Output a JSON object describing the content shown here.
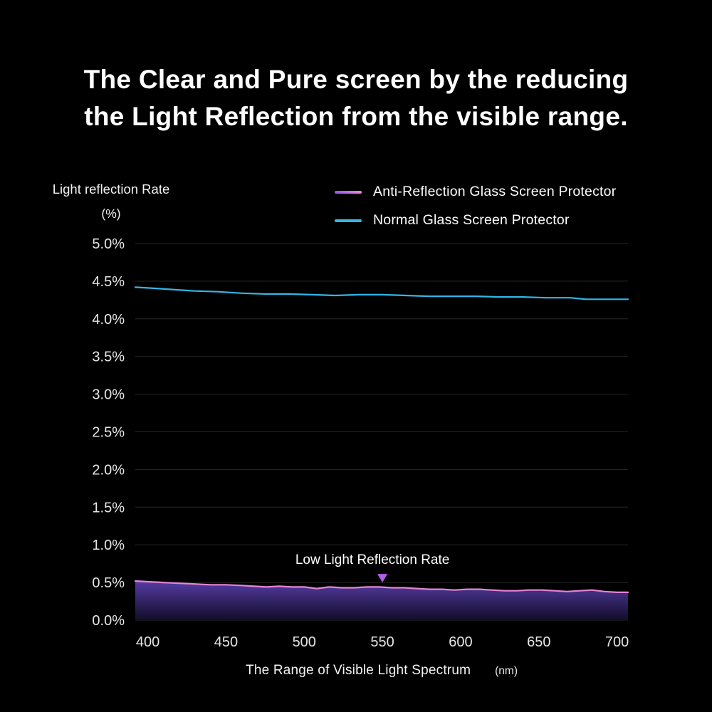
{
  "page": {
    "title_line1": "The Clear and Pure screen by the reducing",
    "title_line2": "the Light Reflection from the visible range."
  },
  "chart_data": {
    "type": "line",
    "title": "",
    "ylabel": "Light reflection Rate",
    "ylabel_unit": "(%)",
    "xlabel": "The Range of Visible Light Spectrum",
    "xlabel_unit": "(nm)",
    "xlim": [
      392,
      707
    ],
    "ylim": [
      0,
      5
    ],
    "grid": true,
    "grid_color": "#262626",
    "tick_color": "#e6e6e6",
    "legend_position": "top-right",
    "y_ticks": [
      "5.0%",
      "4.5%",
      "4.0%",
      "3.5%",
      "3.0%",
      "2.5%",
      "2.0%",
      "1.5%",
      "1.0%",
      "0.5%",
      "0.0%"
    ],
    "x_ticks": [
      400,
      450,
      500,
      550,
      600,
      650,
      700
    ],
    "series": [
      {
        "name": "Anti-Reflection Glass Screen Protector",
        "line_color": "#e584d6",
        "swatch_colors": [
          "#8a5cf6",
          "#f080d8"
        ],
        "area": true,
        "area_top_color": "#5a3fae",
        "area_bottom_color": "#140f2e",
        "points": [
          [
            392,
            0.52
          ],
          [
            400,
            0.51
          ],
          [
            410,
            0.5
          ],
          [
            420,
            0.49
          ],
          [
            430,
            0.48
          ],
          [
            440,
            0.47
          ],
          [
            450,
            0.47
          ],
          [
            460,
            0.46
          ],
          [
            468,
            0.45
          ],
          [
            476,
            0.44
          ],
          [
            484,
            0.45
          ],
          [
            492,
            0.44
          ],
          [
            500,
            0.44
          ],
          [
            508,
            0.42
          ],
          [
            516,
            0.44
          ],
          [
            524,
            0.43
          ],
          [
            532,
            0.43
          ],
          [
            540,
            0.44
          ],
          [
            548,
            0.44
          ],
          [
            556,
            0.43
          ],
          [
            564,
            0.43
          ],
          [
            572,
            0.42
          ],
          [
            580,
            0.41
          ],
          [
            588,
            0.41
          ],
          [
            596,
            0.4
          ],
          [
            604,
            0.41
          ],
          [
            612,
            0.41
          ],
          [
            620,
            0.4
          ],
          [
            628,
            0.39
          ],
          [
            636,
            0.39
          ],
          [
            644,
            0.4
          ],
          [
            652,
            0.4
          ],
          [
            660,
            0.39
          ],
          [
            668,
            0.38
          ],
          [
            676,
            0.39
          ],
          [
            684,
            0.4
          ],
          [
            692,
            0.38
          ],
          [
            700,
            0.37
          ],
          [
            707,
            0.37
          ]
        ]
      },
      {
        "name": "Normal Glass Screen Protector",
        "line_color": "#31b6e8",
        "swatch_colors": [
          "#31b6e8",
          "#31b6e8"
        ],
        "area": false,
        "points": [
          [
            392,
            4.42
          ],
          [
            400,
            4.41
          ],
          [
            415,
            4.39
          ],
          [
            430,
            4.37
          ],
          [
            445,
            4.36
          ],
          [
            460,
            4.34
          ],
          [
            475,
            4.33
          ],
          [
            490,
            4.33
          ],
          [
            505,
            4.32
          ],
          [
            520,
            4.31
          ],
          [
            535,
            4.32
          ],
          [
            550,
            4.32
          ],
          [
            565,
            4.31
          ],
          [
            580,
            4.3
          ],
          [
            595,
            4.3
          ],
          [
            610,
            4.3
          ],
          [
            625,
            4.29
          ],
          [
            640,
            4.29
          ],
          [
            655,
            4.28
          ],
          [
            670,
            4.28
          ],
          [
            680,
            4.26
          ],
          [
            690,
            4.26
          ],
          [
            700,
            4.26
          ],
          [
            707,
            4.26
          ]
        ]
      }
    ],
    "annotation": {
      "text": "Low Light Reflection Rate",
      "x": 550,
      "marker_y": 0.5,
      "marker_color": "#b55ce8",
      "text_color": "#ffffff"
    }
  }
}
